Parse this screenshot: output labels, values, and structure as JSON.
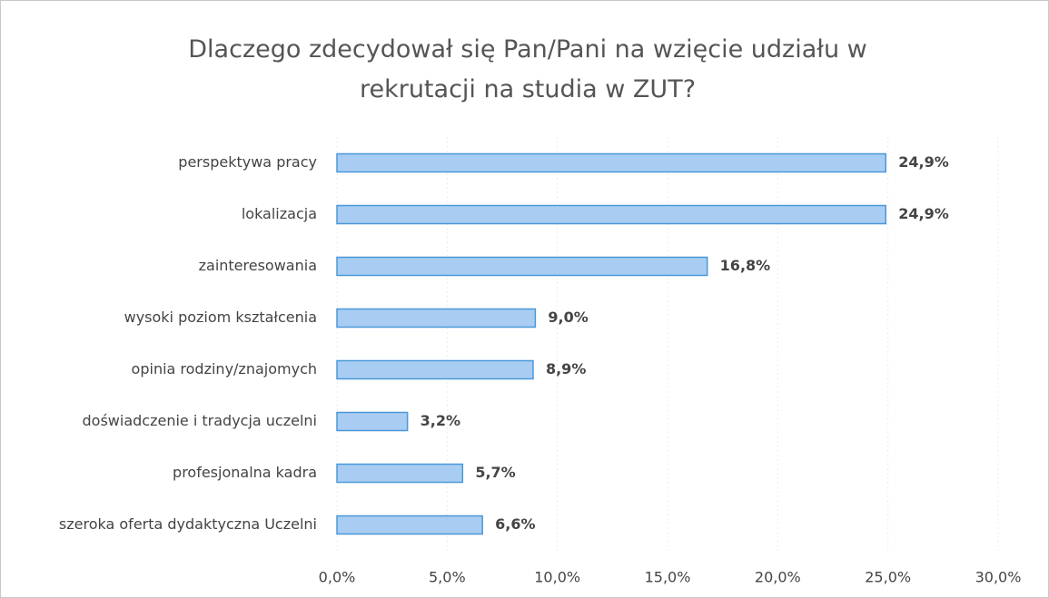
{
  "chart_data": {
    "type": "bar",
    "orientation": "horizontal",
    "title": "Dlaczego zdecydował się Pan/Pani na wzięcie udziału w rekrutacji na studia w ZUT?",
    "categories": [
      "perspektywa pracy",
      "lokalizacja",
      "zainteresowania",
      "wysoki poziom kształcenia",
      "opinia rodziny/znajomych",
      "doświadczenie i tradycja uczelni",
      "profesjonalna kadra",
      "szeroka oferta dydaktyczna Uczelni"
    ],
    "values": [
      24.9,
      24.9,
      16.8,
      9.0,
      8.9,
      3.2,
      5.7,
      6.6
    ],
    "value_labels": [
      "24,9%",
      "24,9%",
      "16,8%",
      "9,0%",
      "8,9%",
      "3,2%",
      "5,7%",
      "6,6%"
    ],
    "color": "#a9cdf2",
    "edge_color": "#4a98d8",
    "xlim": [
      0,
      30
    ],
    "xticks": [
      {
        "value": 0,
        "label": "0,0%"
      },
      {
        "value": 5,
        "label": "5,0%"
      },
      {
        "value": 10,
        "label": "10,0%"
      },
      {
        "value": 15,
        "label": "15,0%"
      },
      {
        "value": 20,
        "label": "20,0%"
      },
      {
        "value": 25,
        "label": "25,0%"
      },
      {
        "value": 30,
        "label": "30,0%"
      }
    ],
    "grid": true
  }
}
